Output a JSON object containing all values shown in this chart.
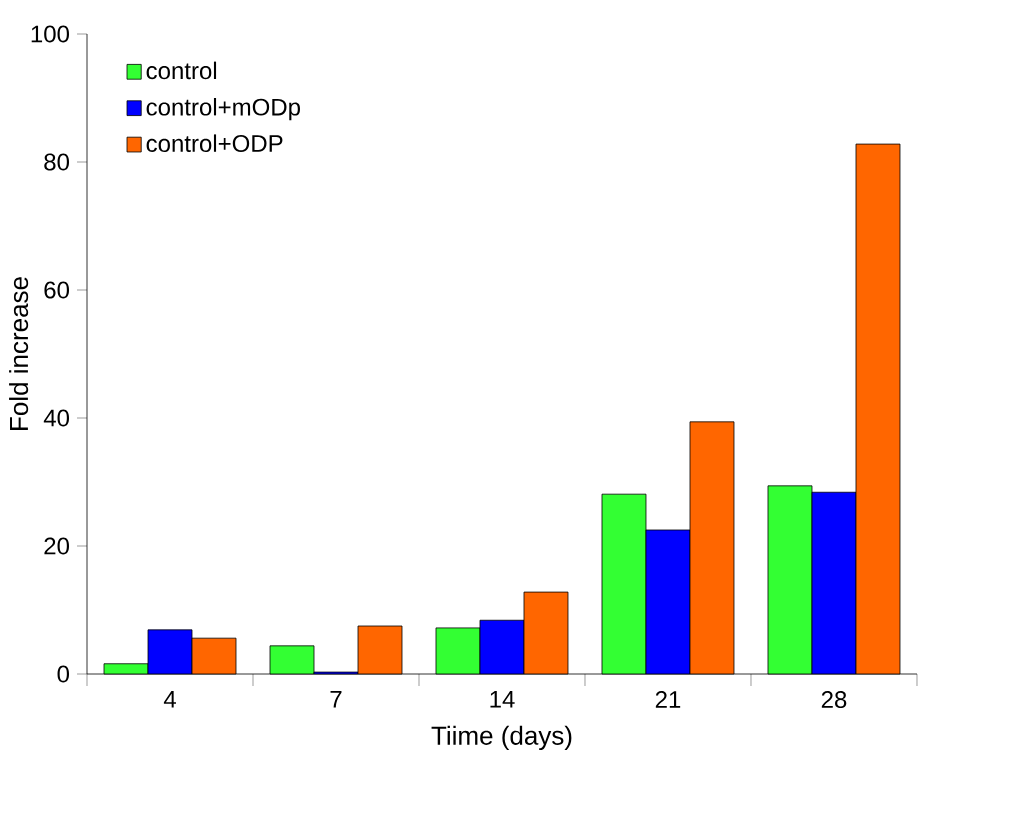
{
  "chart_data": {
    "type": "bar",
    "xlabel": "Tiime (days)",
    "ylabel": "Fold increase",
    "categories": [
      "4",
      "7",
      "14",
      "21",
      "28"
    ],
    "series": [
      {
        "name": "control",
        "color": "#33ff33",
        "values": [
          1.6,
          4.4,
          7.2,
          28.1,
          29.4
        ]
      },
      {
        "name": "control+mODp",
        "color": "#0000ff",
        "values": [
          6.9,
          0.3,
          8.4,
          22.5,
          28.4
        ]
      },
      {
        "name": "control+ODP",
        "color": "#ff6600",
        "values": [
          5.6,
          7.5,
          12.8,
          39.4,
          82.8
        ]
      }
    ],
    "ylim": [
      0,
      100
    ],
    "yticks": [
      0,
      20,
      40,
      60,
      80,
      100
    ],
    "legend": "top left"
  }
}
